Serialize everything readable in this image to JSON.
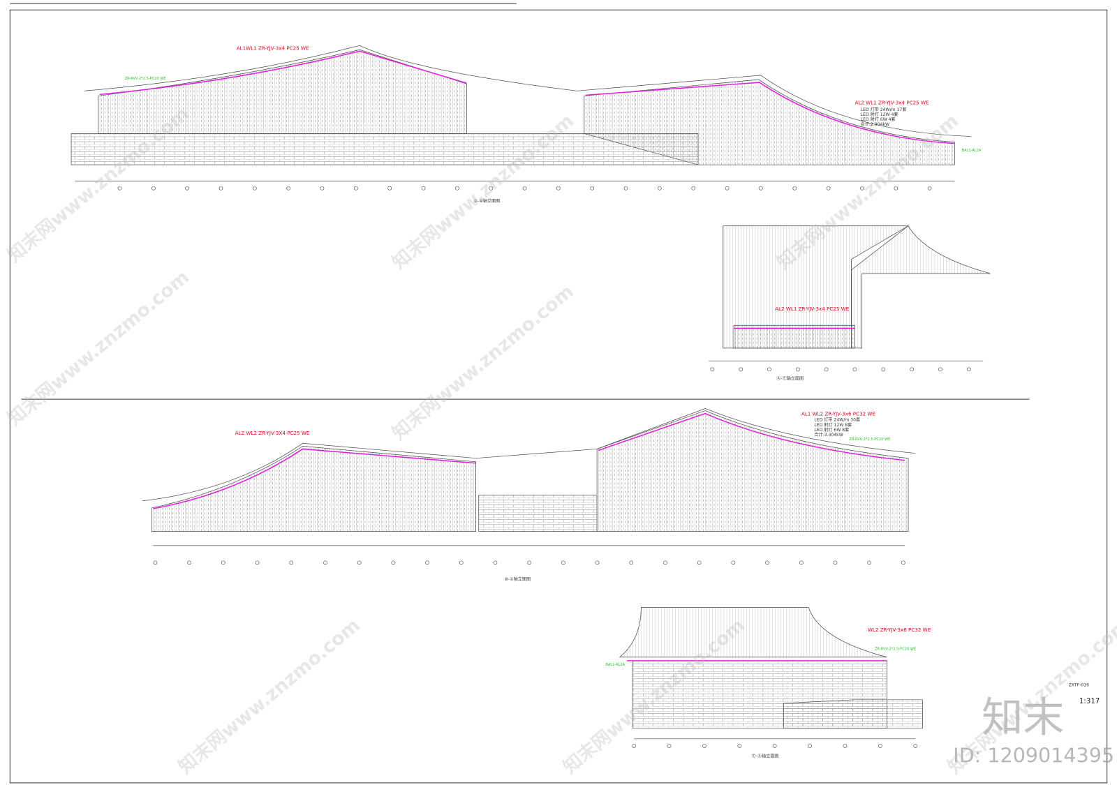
{
  "sheet": {
    "scale": "1:317",
    "id": "ID: 1209014395",
    "drawing_no": "ZXTF-016"
  },
  "watermark": {
    "brand": "知末",
    "site": "知末网www.znzmo.com"
  },
  "elevation_1": {
    "title": "①-⑩轴立面图",
    "cable_1": "AL1WL1 ZR-YJV-3x4 PC25 WE",
    "cable_2": "AL2 WL1 ZR-YJV-3x4 PC25 WE",
    "control_cable": "ZR-RVV-2*2.5-PC20 WE",
    "fixtures": [
      "LED 灯带 24W/m 17套",
      "LED 射灯 12W 4套",
      "LED 射灯 6W 4套",
      "合计:2.904kW"
    ],
    "box_label": "BAL1-AL2A"
  },
  "elevation_2": {
    "title": "Ⓐ-Ⓔ轴立面图",
    "cable": "AL2 WL1 ZR-YJV-3x4 PC25 WE"
  },
  "elevation_3": {
    "title": "⑩-①轴立面图",
    "cable_1": "AL2 WL2 ZR-YJV-3X4 PC25 WE",
    "cable_2": "AL1 WL2 ZR-YJV-3x6 PC32 WE",
    "control_cable": "ZR-RVV-2*2.5-PC20 WE",
    "fixtures": [
      "LED 灯带 24W/m 30套",
      "LED 射灯 12W 8套",
      "LED 射灯 6W 8套",
      "合计:3.304kW"
    ]
  },
  "elevation_4": {
    "title": "Ⓔ-Ⓐ轴立面图",
    "cable": "WL2 ZR-YJV-3x6 PC32 WE",
    "control_cable": "ZR-RVV-2*2.5-PC20 WE",
    "box_label": "BAL1-AL2A"
  }
}
